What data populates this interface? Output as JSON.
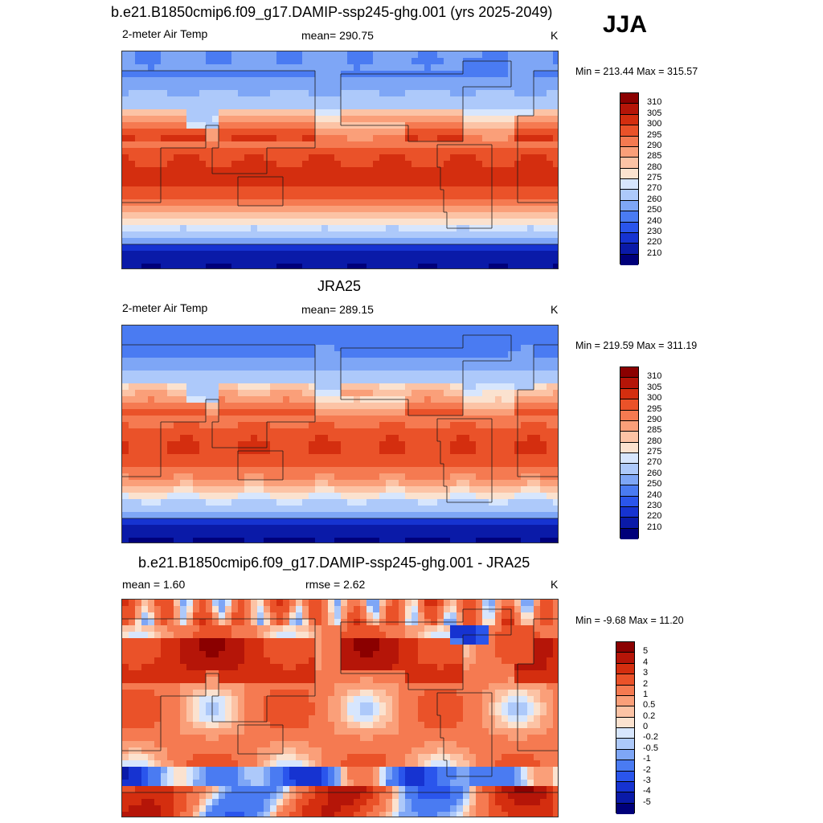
{
  "season_label": "JJA",
  "units": "K",
  "panels": [
    {
      "id": "model",
      "title": "b.e21.B1850cmip6.f09_g17.DAMIP-ssp245-ghg.001 (yrs 2025-2049)",
      "left_label": "2-meter Air Temp",
      "center_label": "mean= 290.75",
      "right_label": "K",
      "minmax": "Min = 213.44 Max = 315.57",
      "colorbar_labels": [
        "310",
        "305",
        "300",
        "295",
        "290",
        "285",
        "280",
        "275",
        "270",
        "260",
        "250",
        "240",
        "230",
        "220",
        "210"
      ]
    },
    {
      "id": "obs",
      "title": "JRA25",
      "left_label": "2-meter Air Temp",
      "center_label": "mean= 289.15",
      "right_label": "K",
      "minmax": "Min = 219.59 Max = 311.19",
      "colorbar_labels": [
        "310",
        "305",
        "300",
        "295",
        "290",
        "285",
        "280",
        "275",
        "270",
        "260",
        "250",
        "240",
        "230",
        "220",
        "210"
      ]
    },
    {
      "id": "diff",
      "title": "b.e21.B1850cmip6.f09_g17.DAMIP-ssp245-ghg.001 - JRA25",
      "left_label": "mean =   1.60",
      "center_label": "rmse =   2.62",
      "right_label": "K",
      "minmax": "Min =  -9.68 Max =  11.20",
      "colorbar_labels": [
        "5",
        "4",
        "3",
        "2",
        "1",
        "0.5",
        "0.2",
        "0",
        "-0.2",
        "-0.5",
        "-1",
        "-2",
        "-3",
        "-4",
        "-5"
      ]
    }
  ],
  "chart_data": [
    {
      "type": "heatmap",
      "title": "b.e21.B1850cmip6.f09_g17.DAMIP-ssp245-ghg.001 (yrs 2025-2049)",
      "variable": "2-meter Air Temp",
      "units": "K",
      "mean": 290.75,
      "min": 213.44,
      "max": 315.57,
      "contour_levels": [
        210,
        220,
        230,
        240,
        250,
        260,
        270,
        275,
        280,
        285,
        290,
        295,
        300,
        305,
        310
      ],
      "colors": [
        "#00007a",
        "#0a1aa8",
        "#1633d1",
        "#2a55ec",
        "#4a7bf2",
        "#7ea6f6",
        "#adc9fa",
        "#d7e6fd",
        "#fbe2cf",
        "#fcc3a5",
        "#fa9f79",
        "#f57a51",
        "#ea5229",
        "#d42e0f",
        "#b51508",
        "#8b0000"
      ]
    },
    {
      "type": "heatmap",
      "title": "JRA25",
      "variable": "2-meter Air Temp",
      "units": "K",
      "mean": 289.15,
      "min": 219.59,
      "max": 311.19,
      "contour_levels": [
        210,
        220,
        230,
        240,
        250,
        260,
        270,
        275,
        280,
        285,
        290,
        295,
        300,
        305,
        310
      ],
      "colors": [
        "#00007a",
        "#0a1aa8",
        "#1633d1",
        "#2a55ec",
        "#4a7bf2",
        "#7ea6f6",
        "#adc9fa",
        "#d7e6fd",
        "#fbe2cf",
        "#fcc3a5",
        "#fa9f79",
        "#f57a51",
        "#ea5229",
        "#d42e0f",
        "#b51508",
        "#8b0000"
      ]
    },
    {
      "type": "heatmap",
      "title": "b.e21.B1850cmip6.f09_g17.DAMIP-ssp245-ghg.001 - JRA25",
      "units": "K",
      "mean": 1.6,
      "rmse": 2.62,
      "min": -9.68,
      "max": 11.2,
      "contour_levels": [
        -5,
        -4,
        -3,
        -2,
        -1,
        -0.5,
        -0.2,
        0,
        0.2,
        0.5,
        1,
        2,
        3,
        4,
        5
      ],
      "colors": [
        "#00007a",
        "#0a1aa8",
        "#1633d1",
        "#2a55ec",
        "#4a7bf2",
        "#7ea6f6",
        "#adc9fa",
        "#d7e6fd",
        "#fbe2cf",
        "#fcc3a5",
        "#fa9f79",
        "#f57a51",
        "#ea5229",
        "#d42e0f",
        "#b51508",
        "#8b0000"
      ]
    }
  ]
}
